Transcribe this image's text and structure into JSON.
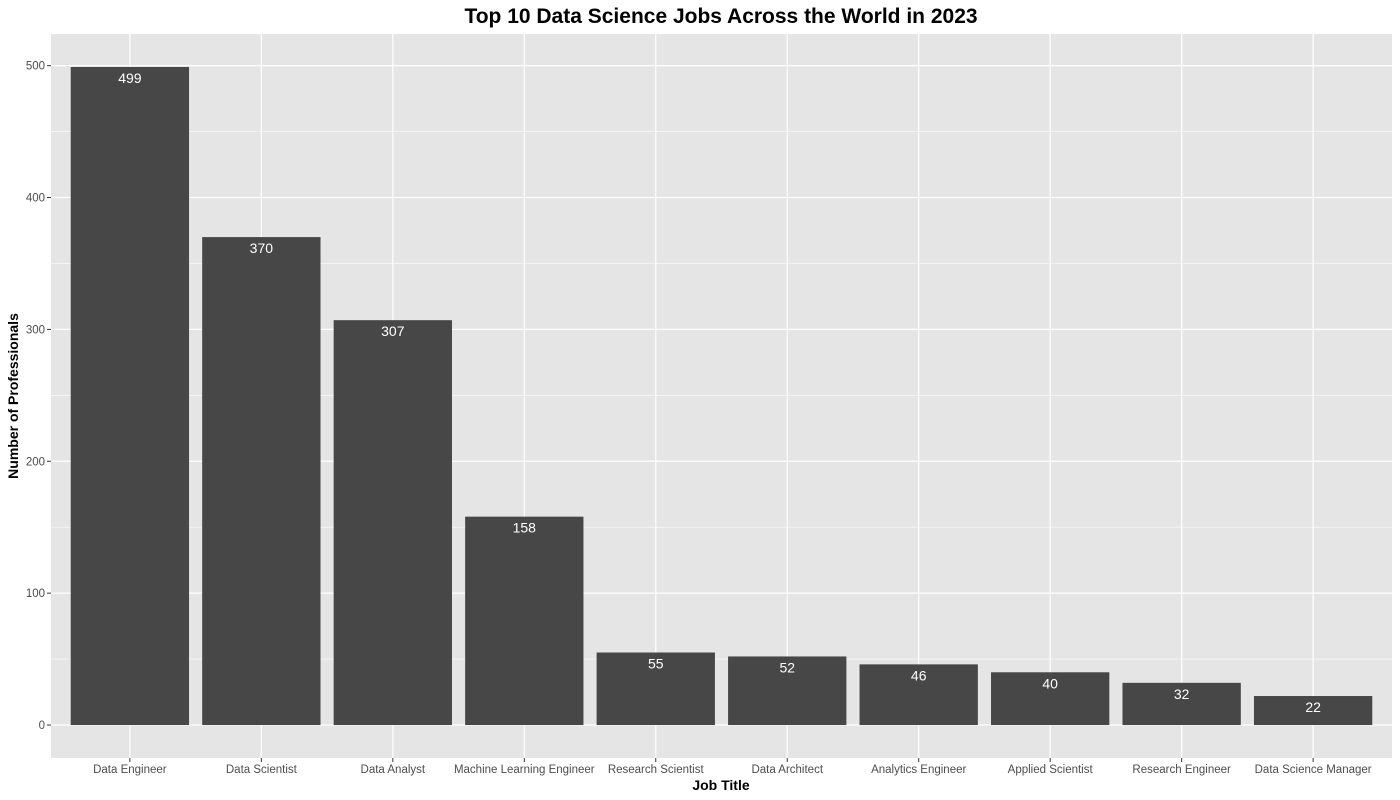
{
  "chart_data": {
    "type": "bar",
    "title": "Top 10 Data Science Jobs Across the World in 2023",
    "xlabel": "Job Title",
    "ylabel": "Number of Professionals",
    "categories": [
      "Data Engineer",
      "Data Scientist",
      "Data Analyst",
      "Machine Learning Engineer",
      "Research Scientist",
      "Data Architect",
      "Analytics Engineer",
      "Applied Scientist",
      "Research Engineer",
      "Data Science Manager"
    ],
    "values": [
      499,
      370,
      307,
      158,
      55,
      52,
      46,
      40,
      32,
      22
    ],
    "data_labels": [
      "499",
      "370",
      "307",
      "158",
      "55",
      "52",
      "46",
      "40",
      "32",
      "22"
    ],
    "ylim": [
      -25,
      524
    ],
    "yticks": [
      0,
      100,
      200,
      300,
      400,
      500
    ],
    "ytick_labels": [
      "0",
      "100",
      "200",
      "300",
      "400",
      "500"
    ],
    "grid": true,
    "legend": "none",
    "colors": {
      "panel_background": "#e5e5e5",
      "grid_major": "#ffffff",
      "bar_fill": "#474747",
      "data_label": "#ffffff",
      "tick_text": "#4d4d4d",
      "tick_mark": "#333333"
    }
  }
}
